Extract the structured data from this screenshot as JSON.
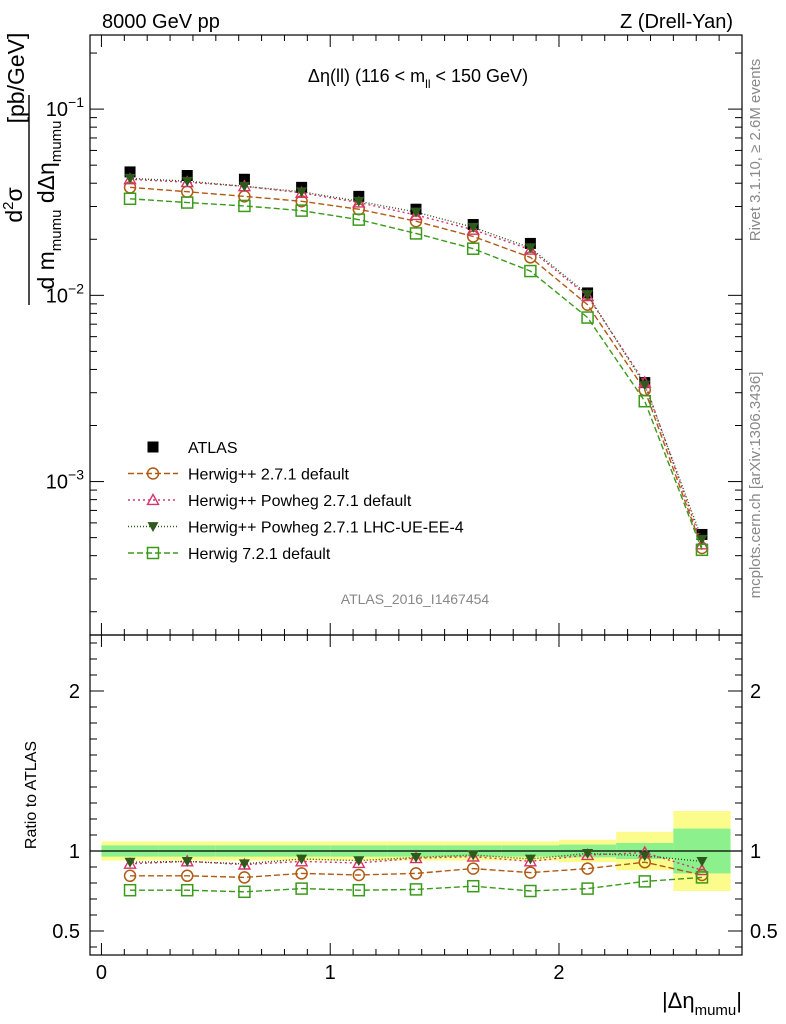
{
  "header": {
    "left": "8000 GeV pp",
    "right": "Z (Drell-Yan)"
  },
  "side_labels": {
    "rivet": "Rivet 3.1.10, ≥ 2.6M events",
    "mcplots": "mcplots.cern.ch [arXiv:1306.3436]"
  },
  "chart_data": {
    "type": "line",
    "title": "Δη(ll) (116 < m_ll < 150 GeV)",
    "title_parts": {
      "main": "Δη(ll) (116 < m",
      "sub": "ll",
      "tail": " < 150 GeV)"
    },
    "watermark": "ATLAS_2016_I1467454",
    "ylabel": "d²σ / d m_mumu dΔη_mumu [pb/GeV]",
    "ylabel_parts": {
      "num": "d",
      "num_sup": "2",
      "num_tail": "σ",
      "den": "d m",
      "den_sub1": "mumu",
      "den_mid": " dΔη",
      "den_sub2": "mumu",
      "unit": "[pb/GeV]"
    },
    "xlabel": "|Δη_mumu|",
    "xlabel_parts": {
      "main": "|Δη",
      "sub": "mumu",
      "tail": "|"
    },
    "ratio_ylabel": "Ratio to ATLAS",
    "xlim": [
      -0.05,
      2.8
    ],
    "ylim": [
      0.00015,
      0.25
    ],
    "ratio_ylim": [
      0.35,
      2.35
    ],
    "yscale": "log",
    "x_ticks": [
      "0",
      "1",
      "2"
    ],
    "y_ticks": [
      {
        "base": "10",
        "exp": "−1",
        "value": 0.1
      },
      {
        "base": "10",
        "exp": "−2",
        "value": 0.01
      },
      {
        "base": "10",
        "exp": "−3",
        "value": 0.001
      }
    ],
    "ratio_ticks": [
      "0.5",
      "1",
      "2"
    ],
    "legend_position": "bottom-left",
    "x": [
      0.125,
      0.375,
      0.625,
      0.875,
      1.125,
      1.375,
      1.625,
      1.875,
      2.125,
      2.375,
      2.625
    ],
    "x_edges": [
      0,
      0.25,
      0.5,
      0.75,
      1.0,
      1.25,
      1.5,
      1.75,
      2.0,
      2.25,
      2.5,
      2.75
    ],
    "band_inner": [
      0.035,
      0.035,
      0.035,
      0.035,
      0.035,
      0.035,
      0.035,
      0.035,
      0.04,
      0.05,
      0.14
    ],
    "band_outer": [
      0.06,
      0.06,
      0.06,
      0.06,
      0.06,
      0.06,
      0.06,
      0.06,
      0.07,
      0.12,
      0.25
    ],
    "series": [
      {
        "name": "ATLAS",
        "marker": "square-filled",
        "color": "#000000",
        "dash": "none",
        "values": [
          0.046,
          0.044,
          0.042,
          0.038,
          0.034,
          0.029,
          0.024,
          0.019,
          0.0103,
          0.0034,
          0.00052
        ],
        "ratio": [
          1,
          1,
          1,
          1,
          1,
          1,
          1,
          1,
          1,
          1,
          1
        ]
      },
      {
        "name": "Herwig++ 2.7.1 default",
        "marker": "circle-open",
        "color": "#b05a14",
        "dash": "6,3",
        "values": [
          0.038,
          0.036,
          0.034,
          0.032,
          0.029,
          0.025,
          0.0207,
          0.016,
          0.0089,
          0.0031,
          0.00044
        ],
        "ratio": [
          0.845,
          0.845,
          0.835,
          0.86,
          0.85,
          0.86,
          0.89,
          0.865,
          0.89,
          0.93,
          0.85
        ]
      },
      {
        "name": "Herwig++ Powheg 2.7.1 default",
        "marker": "triangle-open",
        "color": "#d8336c",
        "dash": "2,3",
        "values": [
          0.042,
          0.0405,
          0.0385,
          0.0355,
          0.0315,
          0.027,
          0.0225,
          0.0176,
          0.0099,
          0.0034,
          0.00046
        ],
        "ratio": [
          0.92,
          0.935,
          0.915,
          0.935,
          0.925,
          0.955,
          0.965,
          0.935,
          0.975,
          0.99,
          0.88
        ]
      },
      {
        "name": "Herwig++ Powheg 2.7.1 LHC-UE-EE-4",
        "marker": "triangle-down-filled",
        "color": "#2e5a1c",
        "dash": "1,2",
        "values": [
          0.0425,
          0.041,
          0.0385,
          0.036,
          0.032,
          0.028,
          0.0232,
          0.018,
          0.0101,
          0.0033,
          0.00049
        ],
        "ratio": [
          0.93,
          0.935,
          0.92,
          0.95,
          0.94,
          0.96,
          0.975,
          0.95,
          0.985,
          0.97,
          0.935
        ]
      },
      {
        "name": "Herwig 7.2.1 default",
        "marker": "square-open",
        "color": "#3a9a1a",
        "dash": "6,3",
        "values": [
          0.033,
          0.0315,
          0.0302,
          0.0285,
          0.0255,
          0.0215,
          0.0178,
          0.0135,
          0.0076,
          0.0027,
          0.00043
        ],
        "ratio": [
          0.755,
          0.755,
          0.745,
          0.765,
          0.755,
          0.76,
          0.78,
          0.75,
          0.765,
          0.81,
          0.835
        ]
      }
    ]
  }
}
